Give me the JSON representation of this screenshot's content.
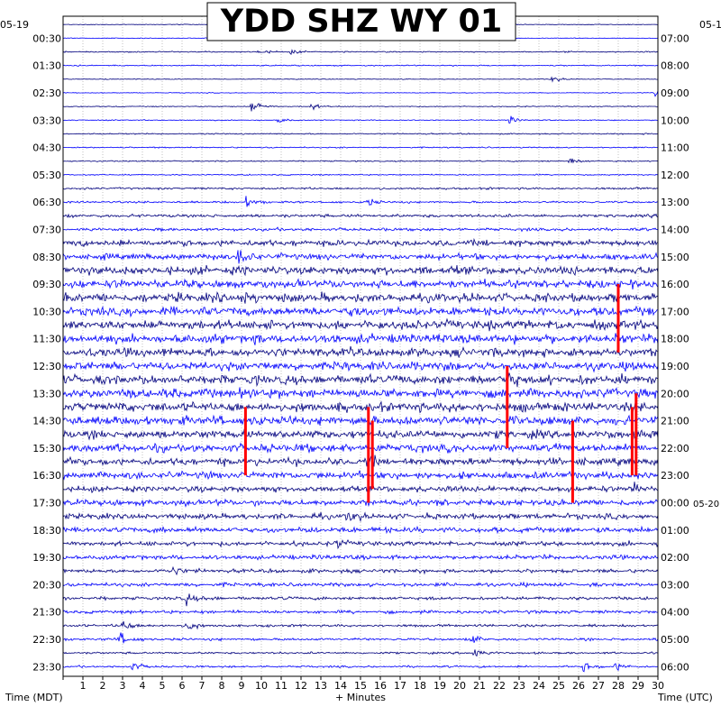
{
  "chart_data": {
    "type": "line",
    "title": "YDD SHZ WY 01",
    "left_date": "05-19",
    "right_date": "05-1",
    "right_date_change": "05-20",
    "left_axis_label": "Time (MDT)",
    "right_axis_label": "Time (UTC)",
    "xlabel": "+ Minutes",
    "x_ticks": [
      "1",
      "2",
      "3",
      "4",
      "5",
      "6",
      "7",
      "8",
      "9",
      "10",
      "11",
      "12",
      "13",
      "14",
      "15",
      "16",
      "17",
      "18",
      "19",
      "20",
      "21",
      "22",
      "23",
      "24",
      "25",
      "26",
      "27",
      "28",
      "29",
      "30"
    ],
    "xlim": [
      0,
      30
    ],
    "left_time_labels": [
      "00:30",
      "01:30",
      "02:30",
      "03:30",
      "04:30",
      "05:30",
      "06:30",
      "07:30",
      "08:30",
      "09:30",
      "10:30",
      "11:30",
      "12:30",
      "13:30",
      "14:30",
      "15:30",
      "16:30",
      "17:30",
      "18:30",
      "19:30",
      "20:30",
      "21:30",
      "22:30",
      "23:30"
    ],
    "right_time_labels": [
      "07:00",
      "08:00",
      "09:00",
      "10:00",
      "11:00",
      "12:00",
      "13:00",
      "14:00",
      "15:00",
      "16:00",
      "17:00",
      "18:00",
      "19:00",
      "20:00",
      "21:00",
      "22:00",
      "23:00",
      "00:00",
      "01:00",
      "02:00",
      "03:00",
      "04:00",
      "05:00",
      "06:00"
    ],
    "trace_count": 48,
    "trace_colors": [
      "#00007f",
      "#0000ff"
    ],
    "clip_color": "#ff0000",
    "amplitude_by_hour": [
      0.3,
      0.5,
      0.3,
      0.4,
      0.5,
      0.5,
      0.8,
      1.2,
      2.4,
      3.2,
      3.4,
      3.6,
      3.4,
      3.6,
      3.6,
      3.2,
      2.8,
      2.4,
      2.2,
      1.8,
      1.5,
      1.3,
      1.0,
      0.8
    ],
    "events": [
      {
        "trace": 1,
        "minute": 7.3,
        "amp": 1.2
      },
      {
        "trace": 2,
        "minute": 9.8,
        "amp": 3.0
      },
      {
        "trace": 2,
        "minute": 11.5,
        "amp": 2.5
      },
      {
        "trace": 4,
        "minute": 24.6,
        "amp": 4.0
      },
      {
        "trace": 5,
        "minute": 29.8,
        "amp": 8.0
      },
      {
        "trace": 6,
        "minute": 9.5,
        "amp": 8.0
      },
      {
        "trace": 6,
        "minute": 12.5,
        "amp": 3.5
      },
      {
        "trace": 7,
        "minute": 10.8,
        "amp": 3.5
      },
      {
        "trace": 7,
        "minute": 22.5,
        "amp": 3.5
      },
      {
        "trace": 10,
        "minute": 25.5,
        "amp": 4.0
      },
      {
        "trace": 13,
        "minute": 9.2,
        "amp": 6.0
      },
      {
        "trace": 13,
        "minute": 15.3,
        "amp": 5.0
      },
      {
        "trace": 17,
        "minute": 8.8,
        "amp": 8.0
      },
      {
        "trace": 20,
        "minute": 9.0,
        "amp": 5.0
      },
      {
        "trace": 21,
        "minute": 14.8,
        "amp": 6.0
      },
      {
        "trace": 26,
        "minute": 22.3,
        "amp": 6.0
      },
      {
        "trace": 27,
        "minute": 9.3,
        "amp": 5.0
      },
      {
        "trace": 32,
        "minute": 15.3,
        "amp": 6.0
      },
      {
        "trace": 34,
        "minute": 28.8,
        "amp": 5.0
      },
      {
        "trace": 36,
        "minute": 14.3,
        "amp": 6.0
      },
      {
        "trace": 38,
        "minute": 13.8,
        "amp": 5.0
      },
      {
        "trace": 40,
        "minute": 5.5,
        "amp": 5.0
      },
      {
        "trace": 42,
        "minute": 6.2,
        "amp": 6.0
      },
      {
        "trace": 44,
        "minute": 3.0,
        "amp": 7.0
      },
      {
        "trace": 44,
        "minute": 6.2,
        "amp": 6.0
      },
      {
        "trace": 45,
        "minute": 2.8,
        "amp": 8.0
      },
      {
        "trace": 45,
        "minute": 20.6,
        "amp": 5.0
      },
      {
        "trace": 46,
        "minute": 20.6,
        "amp": 7.0
      },
      {
        "trace": 47,
        "minute": 3.5,
        "amp": 5.0
      },
      {
        "trace": 47,
        "minute": 26.2,
        "amp": 6.0
      },
      {
        "trace": 47,
        "minute": 27.8,
        "amp": 5.0
      }
    ],
    "clipped_segments": [
      {
        "minute": 9.2,
        "from_trace": 28,
        "to_trace": 33
      },
      {
        "minute": 15.4,
        "from_trace": 28,
        "to_trace": 35
      },
      {
        "minute": 15.6,
        "from_trace": 29,
        "to_trace": 34
      },
      {
        "minute": 22.4,
        "from_trace": 25,
        "to_trace": 31
      },
      {
        "minute": 25.7,
        "from_trace": 29,
        "to_trace": 35
      },
      {
        "minute": 28.7,
        "from_trace": 28,
        "to_trace": 33
      },
      {
        "minute": 28.9,
        "from_trace": 27,
        "to_trace": 33
      },
      {
        "minute": 28.0,
        "from_trace": 19,
        "to_trace": 24
      }
    ],
    "grid": true
  }
}
